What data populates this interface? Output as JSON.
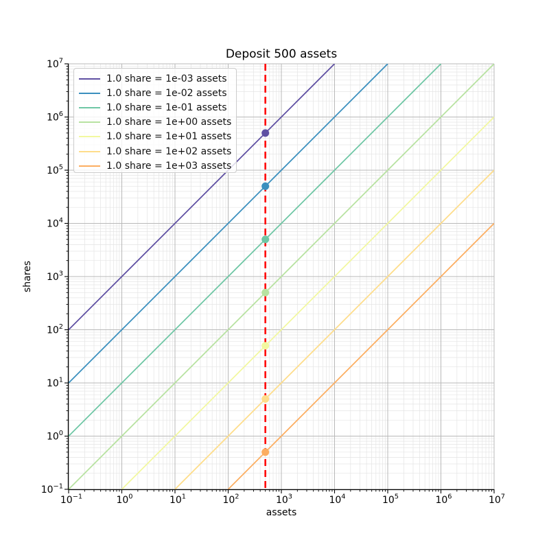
{
  "chart_data": {
    "type": "line",
    "title": "Deposit 500 assets",
    "xlabel": "assets",
    "ylabel": "shares",
    "xscale": "log",
    "yscale": "log",
    "xlim": [
      0.1,
      10000000
    ],
    "ylim": [
      0.1,
      10000000
    ],
    "x_tick_exponents": [
      -1,
      0,
      1,
      2,
      3,
      4,
      5,
      6,
      7
    ],
    "y_tick_exponents": [
      -1,
      0,
      1,
      2,
      3,
      4,
      5,
      6,
      7
    ],
    "grid": {
      "major": true,
      "minor": true,
      "major_color": "#b8b8b8",
      "minor_color": "#e4e4e4"
    },
    "legend_position": "upper left",
    "series": [
      {
        "name": "1.0 share = 1e-03 assets",
        "assets_per_share": 0.001,
        "color": "#5e4fa2"
      },
      {
        "name": "1.0 share = 1e-02 assets",
        "assets_per_share": 0.01,
        "color": "#3a8fbe"
      },
      {
        "name": "1.0 share = 1e-01 assets",
        "assets_per_share": 0.1,
        "color": "#6ec6a4"
      },
      {
        "name": "1.0 share = 1e+00 assets",
        "assets_per_share": 1,
        "color": "#b7e2a0"
      },
      {
        "name": "1.0 share = 1e+01 assets",
        "assets_per_share": 10,
        "color": "#f2f89f"
      },
      {
        "name": "1.0 share = 1e+02 assets",
        "assets_per_share": 100,
        "color": "#fedd8a"
      },
      {
        "name": "1.0 share = 1e+03 assets",
        "assets_per_share": 1000,
        "color": "#fcad60"
      }
    ],
    "deposit_line": {
      "x": 500,
      "color": "#ff0000",
      "style": "dashed"
    },
    "markers": [
      {
        "x": 500,
        "y": 500000,
        "color": "#5e4fa2"
      },
      {
        "x": 500,
        "y": 50000,
        "color": "#3a8fbe"
      },
      {
        "x": 500,
        "y": 5000,
        "color": "#6ec6a4"
      },
      {
        "x": 500,
        "y": 500,
        "color": "#b7e2a0"
      },
      {
        "x": 500,
        "y": 50,
        "color": "#f2f89f"
      },
      {
        "x": 500,
        "y": 5,
        "color": "#fedd8a"
      },
      {
        "x": 500,
        "y": 0.5,
        "color": "#fcad60"
      }
    ]
  }
}
